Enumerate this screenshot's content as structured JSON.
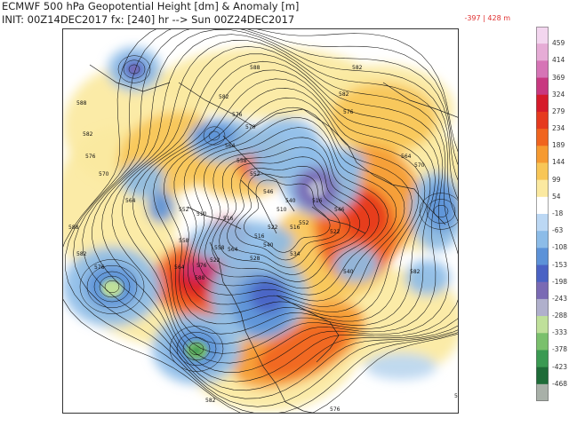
{
  "header": {
    "title_line1": "ECMWF 500 hPa Geopotential Height [dm] & Anomaly [m]",
    "title_line2": "INIT: 00Z14DEC2017  fx: [240] hr --> Sun 00Z24DEC2017",
    "minmax": "-397 | 428 m"
  },
  "colorbar": {
    "levels": [
      "459",
      "414",
      "369",
      "324",
      "279",
      "234",
      "189",
      "144",
      "99",
      "54",
      "-18",
      "-63",
      "-108",
      "-153",
      "-198",
      "-243",
      "-288",
      "-333",
      "-378",
      "-423",
      "-468"
    ],
    "colors": [
      "#f3d6ef",
      "#e6acd6",
      "#d674b6",
      "#c83880",
      "#d61a2a",
      "#e63a1e",
      "#f0641e",
      "#f69a30",
      "#f8c656",
      "#fbe9a0",
      "#ffffff",
      "#bcd8f4",
      "#8cbce8",
      "#5c92d8",
      "#4a62c4",
      "#7a6ab4",
      "#b0b0cc",
      "#bfe09a",
      "#7ac06c",
      "#3a9a52",
      "#1e6c38",
      "#a8b0a8"
    ]
  },
  "map": {
    "contour_labels": [
      "588",
      "582",
      "576",
      "570",
      "564",
      "558",
      "552",
      "546",
      "540",
      "534",
      "528",
      "522",
      "516",
      "510",
      "588",
      "582",
      "576",
      "570",
      "564",
      "588",
      "582",
      "576",
      "552",
      "558",
      "564",
      "576",
      "588",
      "582",
      "576",
      "564",
      "570",
      "582",
      "546",
      "540",
      "522",
      "516",
      "516",
      "522",
      "516",
      "510",
      "540",
      "552",
      "558",
      "564",
      "582",
      "576",
      "582",
      "588"
    ],
    "regions": [
      {
        "color": "#f8c656",
        "label": "ridge-warm"
      },
      {
        "color": "#5c92d8",
        "label": "trough-cold"
      }
    ]
  }
}
